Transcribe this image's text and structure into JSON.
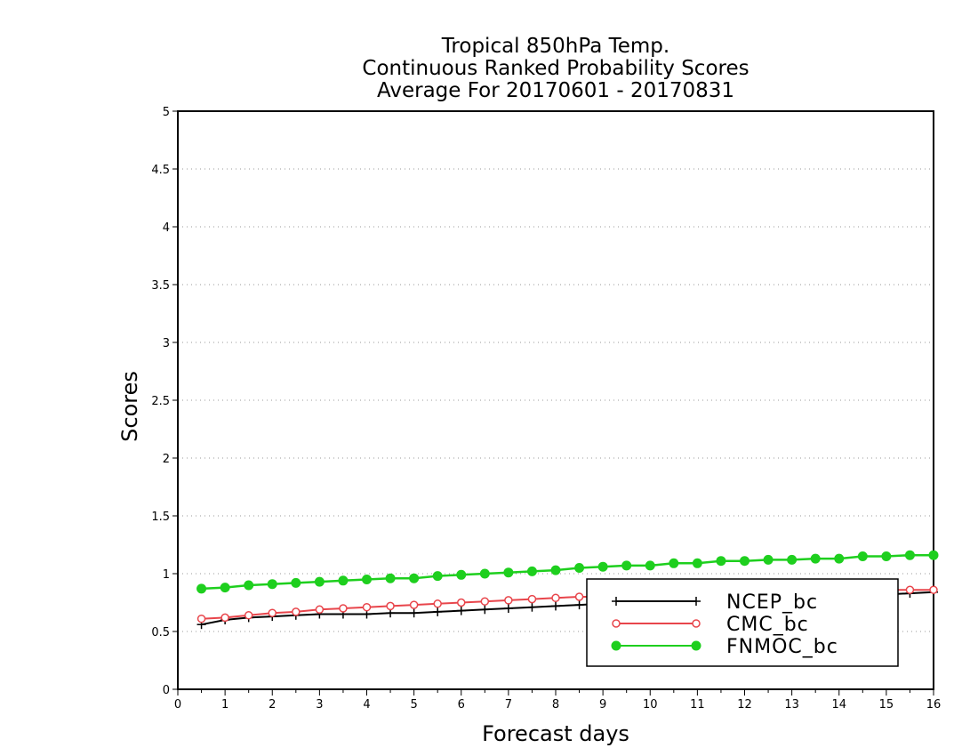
{
  "chart_data": {
    "type": "line",
    "title_lines": [
      "Tropical 850hPa Temp.",
      "Continuous Ranked Probability Scores",
      "Average For 20170601 - 20170831"
    ],
    "xlabel": "Forecast days",
    "ylabel": "Scores",
    "xlim": [
      0,
      16
    ],
    "ylim": [
      0,
      5
    ],
    "xticks": [
      0,
      1,
      2,
      3,
      4,
      5,
      6,
      7,
      8,
      9,
      10,
      11,
      12,
      13,
      14,
      15,
      16
    ],
    "yticks": [
      0,
      0.5,
      1,
      1.5,
      2,
      2.5,
      3,
      3.5,
      4,
      4.5,
      5
    ],
    "ytick_labels": [
      "0",
      "0.5",
      "1",
      "1.5",
      "2",
      "2.5",
      "3",
      "3.5",
      "4",
      "4.5",
      "5"
    ],
    "grid": "horizontal dotted",
    "legend_position": "bottom-right",
    "x": [
      0.5,
      1,
      1.5,
      2,
      2.5,
      3,
      3.5,
      4,
      4.5,
      5,
      5.5,
      6,
      6.5,
      7,
      7.5,
      8,
      8.5,
      9,
      9.5,
      10,
      10.5,
      11,
      11.5,
      12,
      12.5,
      13,
      13.5,
      14,
      14.5,
      15,
      15.5,
      16
    ],
    "series": [
      {
        "name": "NCEP_bc",
        "color": "#000000",
        "marker": "plus",
        "values": [
          0.56,
          0.6,
          0.62,
          0.63,
          0.64,
          0.65,
          0.65,
          0.65,
          0.66,
          0.66,
          0.67,
          0.68,
          0.69,
          0.7,
          0.71,
          0.72,
          0.73,
          0.74,
          0.75,
          0.76,
          0.76,
          0.77,
          0.78,
          0.78,
          0.79,
          0.8,
          0.8,
          0.81,
          0.82,
          0.82,
          0.83,
          0.84
        ]
      },
      {
        "name": "CMC_bc",
        "color": "#e8454b",
        "marker": "open-circle",
        "values": [
          0.61,
          0.62,
          0.64,
          0.66,
          0.67,
          0.69,
          0.7,
          0.71,
          0.72,
          0.73,
          0.74,
          0.75,
          0.76,
          0.77,
          0.78,
          0.79,
          0.8,
          0.8,
          0.81,
          0.81,
          0.82,
          0.82,
          0.83,
          0.83,
          0.84,
          0.84,
          0.84,
          0.85,
          0.85,
          0.86,
          0.86,
          0.86
        ]
      },
      {
        "name": "FNMOC_bc",
        "color": "#1ecf1e",
        "marker": "filled-circle",
        "values": [
          0.87,
          0.88,
          0.9,
          0.91,
          0.92,
          0.93,
          0.94,
          0.95,
          0.96,
          0.96,
          0.98,
          0.99,
          1.0,
          1.01,
          1.02,
          1.03,
          1.05,
          1.06,
          1.07,
          1.07,
          1.09,
          1.09,
          1.11,
          1.11,
          1.12,
          1.12,
          1.13,
          1.13,
          1.15,
          1.15,
          1.16,
          1.16
        ]
      }
    ]
  }
}
